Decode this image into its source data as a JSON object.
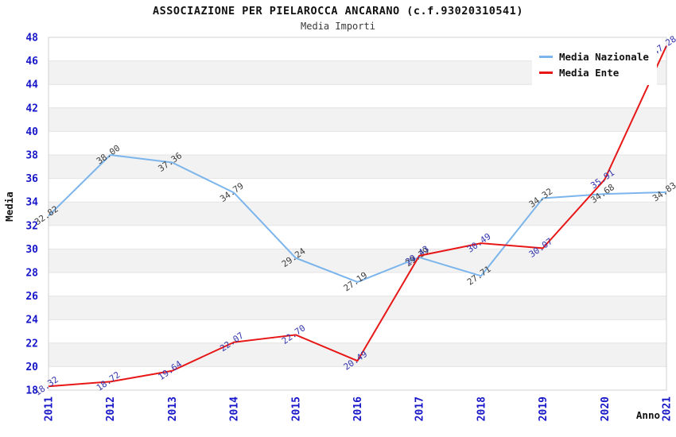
{
  "title": "ASSOCIAZIONE PER PIELAROCCA ANCARANO (c.f.93020310541)",
  "subtitle": "Media Importi",
  "chart_data": {
    "type": "line",
    "x": [
      2011,
      2012,
      2013,
      2014,
      2015,
      2016,
      2017,
      2018,
      2019,
      2020,
      2021
    ],
    "xlabel": "Anno",
    "ylabel": "Media",
    "ylim": [
      18,
      48
    ],
    "ytick_step": 2,
    "grid": "horizontal-only",
    "striped_bands": true,
    "legend_position": "top-right",
    "series": [
      {
        "name": "Media Nazionale",
        "color": "#7cb5ec",
        "label_color": "#3f3f3f",
        "values": [
          32.82,
          38.0,
          37.36,
          34.79,
          29.24,
          27.19,
          29.29,
          27.71,
          34.32,
          34.68,
          34.83
        ]
      },
      {
        "name": "Media Ente",
        "color": "#e81717",
        "label_color": "#3434ad",
        "values": [
          18.32,
          18.72,
          19.64,
          22.07,
          22.7,
          20.49,
          29.43,
          30.49,
          30.07,
          35.91,
          47.28
        ]
      }
    ]
  },
  "colors": {
    "axis_text": "#1616c8",
    "axis_title": "#111111",
    "stripe": "#f2f2f2",
    "grid": "#e4e4e4",
    "border": "#d0d0d0"
  }
}
